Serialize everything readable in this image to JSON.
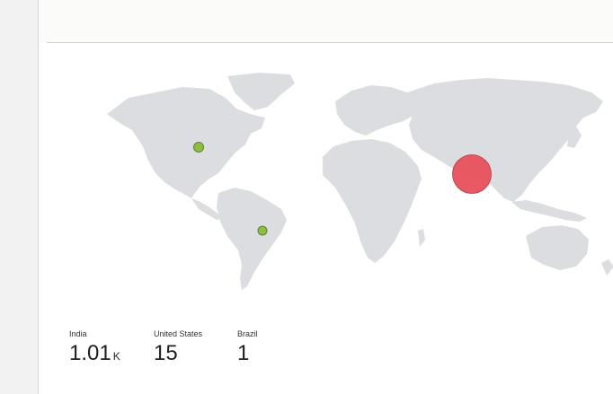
{
  "map": {
    "bubbles": [
      {
        "name": "India",
        "value": 1010,
        "color": "#e8505b"
      },
      {
        "name": "United States",
        "value": 15,
        "color": "#8cbf3f"
      },
      {
        "name": "Brazil",
        "value": 1,
        "color": "#8cbf3f"
      }
    ]
  },
  "stats": [
    {
      "label": "India",
      "value": "1.01",
      "unit": "K"
    },
    {
      "label": "United States",
      "value": "15",
      "unit": ""
    },
    {
      "label": "Brazil",
      "value": "1",
      "unit": ""
    }
  ]
}
